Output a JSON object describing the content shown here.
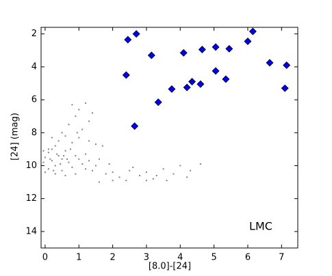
{
  "chart_data": {
    "type": "scatter",
    "xlabel": "[8.0]-[24]",
    "ylabel": "[24] (mag)",
    "annotation": "LMC",
    "xlim": [
      -0.12,
      7.48
    ],
    "ylim": [
      15.0,
      1.6
    ],
    "y_inverted": true,
    "xticks": [
      0,
      1,
      2,
      3,
      4,
      5,
      6,
      7
    ],
    "yticks": [
      2,
      4,
      6,
      8,
      10,
      12,
      14
    ],
    "series": [
      {
        "color": "#808080",
        "marker": "dot",
        "x": [
          0.0,
          0.1,
          0.2,
          0.3,
          0.4,
          0.5,
          0.3,
          0.1,
          -0.05,
          0.2,
          0.4,
          0.6,
          0.7,
          0.8,
          0.5,
          0.9,
          1.0,
          1.1,
          1.2,
          1.3,
          0.6,
          0.8,
          1.0,
          0.7,
          0.9,
          1.0,
          0.8,
          1.2,
          1.4,
          1.1,
          1.5,
          1.7,
          1.6,
          1.4,
          1.8,
          2.0,
          2.2,
          2.5,
          2.8,
          3.0,
          3.2,
          3.5,
          3.8,
          4.0,
          4.3,
          4.6,
          2.0,
          2.4,
          3.0,
          1.9,
          0.3,
          0.0,
          0.2,
          0.5,
          0.1,
          0.35,
          0.45,
          0.25,
          0.6,
          0.9,
          1.2,
          1.5,
          -0.05,
          0.15,
          0.55,
          0.65,
          0.75,
          2.6,
          3.3,
          4.2,
          3.6,
          1.6,
          1.3,
          0.95,
          1.3
        ],
        "values": [
          9.5,
          9.2,
          9.0,
          8.8,
          9.4,
          9.6,
          10.0,
          10.2,
          9.8,
          9.7,
          8.5,
          9.1,
          9.8,
          10.1,
          10.3,
          9.4,
          9.6,
          9.9,
          9.3,
          9.7,
          8.2,
          8.6,
          8.3,
          7.5,
          7.0,
          6.6,
          6.3,
          6.2,
          6.8,
          7.8,
          8.7,
          8.8,
          9.6,
          10.3,
          10.5,
          10.4,
          10.7,
          10.3,
          10.6,
          10.4,
          10.8,
          10.2,
          10.5,
          10.0,
          10.3,
          9.9,
          10.9,
          10.9,
          10.9,
          9.9,
          10.5,
          10.4,
          8.3,
          8.0,
          9.0,
          9.3,
          9.9,
          10.3,
          10.6,
          10.5,
          10.2,
          10.0,
          9.1,
          9.6,
          9.4,
          9.6,
          9.0,
          10.1,
          10.6,
          10.7,
          10.9,
          11.0,
          7.3,
          8.0,
          8.5
        ]
      },
      {
        "color": "#0000ee",
        "marker": "diamond",
        "x": [
          2.45,
          2.7,
          2.4,
          3.15,
          2.65,
          3.35,
          3.75,
          4.1,
          4.2,
          4.35,
          4.6,
          4.65,
          5.05,
          5.05,
          5.35,
          5.45,
          6.0,
          6.15,
          6.65,
          7.1,
          7.15
        ],
        "values": [
          2.35,
          2.0,
          4.5,
          3.3,
          7.6,
          6.15,
          5.35,
          3.15,
          5.25,
          4.9,
          5.05,
          2.95,
          2.8,
          4.25,
          4.75,
          2.9,
          2.45,
          1.85,
          3.75,
          5.3,
          3.9
        ]
      }
    ]
  }
}
